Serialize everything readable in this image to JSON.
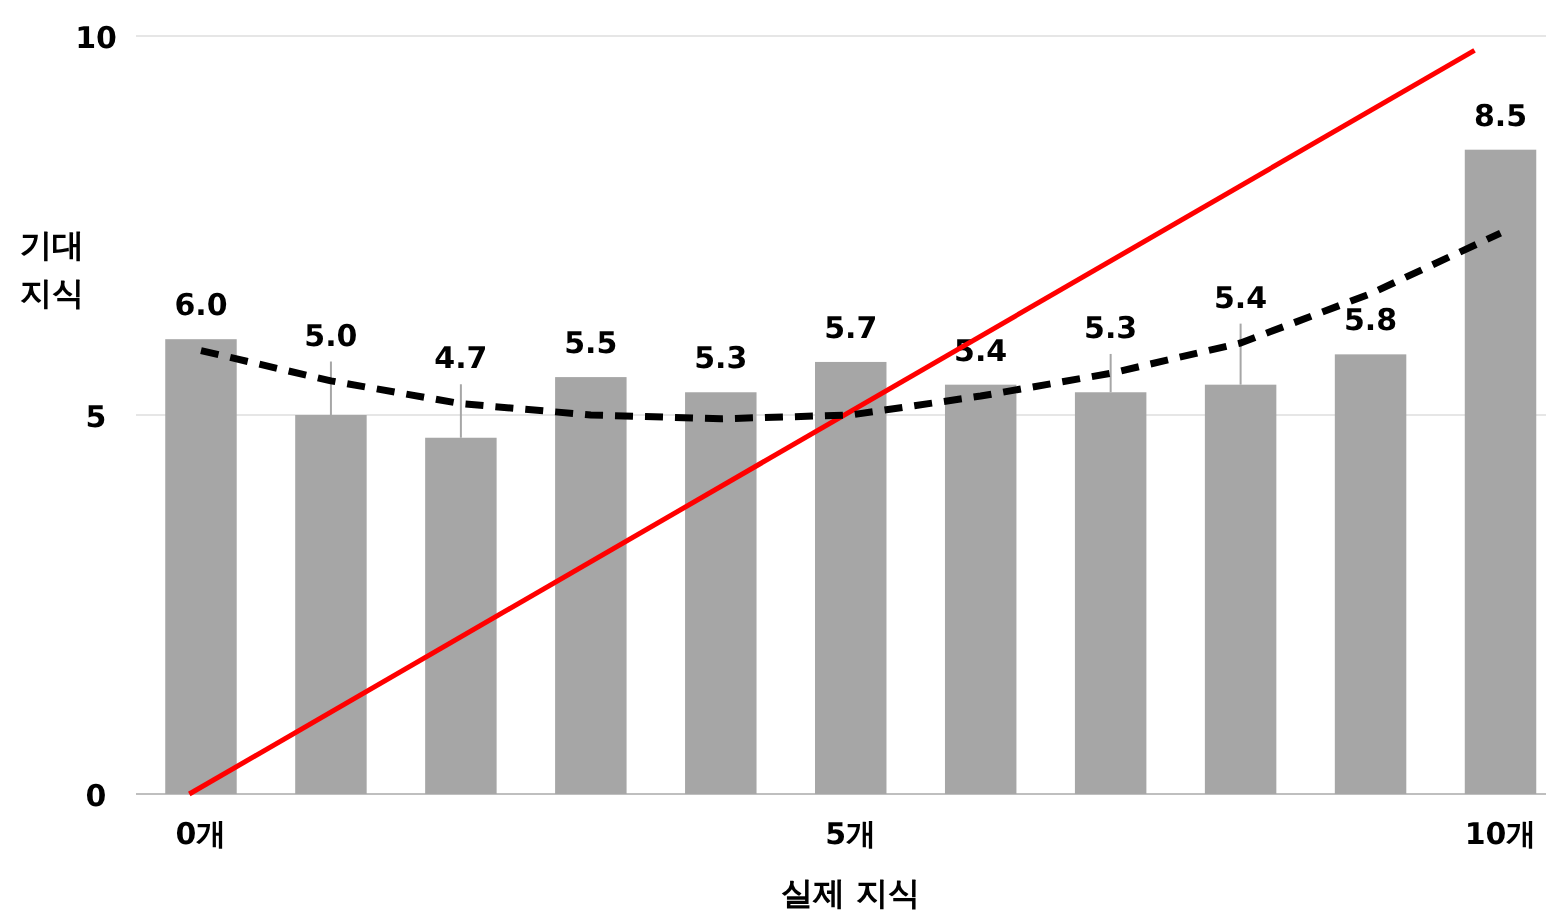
{
  "chart_data": {
    "type": "bar",
    "xlabel": "실제 지식",
    "ylabel": "기대\n지식",
    "x": [
      0,
      1,
      2,
      3,
      4,
      5,
      6,
      7,
      8,
      9,
      10
    ],
    "xlim": [
      -0.5,
      10.35
    ],
    "xticks": [
      {
        "value": 0,
        "label": "0개"
      },
      {
        "value": 5,
        "label": "5개"
      },
      {
        "value": 10,
        "label": "10개"
      }
    ],
    "ylim": [
      0,
      10
    ],
    "yticks": [
      0,
      5,
      10
    ],
    "grid": "y",
    "series": [
      {
        "color": "#a6a6a6",
        "values": [
          6.0,
          5.0,
          4.7,
          5.5,
          5.3,
          5.7,
          5.4,
          5.3,
          5.4,
          5.8,
          8.5
        ],
        "value_labels": [
          "6.0",
          "5.0",
          "4.7",
          "5.5",
          "5.3",
          "5.7",
          "5.4",
          "5.3",
          "5.4",
          "5.8",
          "8.5"
        ]
      },
      {
        "type": "line",
        "color": "#ff0000",
        "line_style": "solid",
        "x": [
          -0.09,
          9.8
        ],
        "values": [
          0,
          9.81
        ]
      },
      {
        "type": "line",
        "color": "#000000",
        "line_style": "dashed",
        "x": [
          0,
          1,
          2,
          3,
          4,
          5,
          6,
          7,
          8,
          9,
          10
        ],
        "values": [
          5.85,
          5.45,
          5.15,
          5.0,
          4.95,
          5.0,
          5.25,
          5.55,
          5.95,
          6.6,
          7.4
        ]
      }
    ]
  }
}
